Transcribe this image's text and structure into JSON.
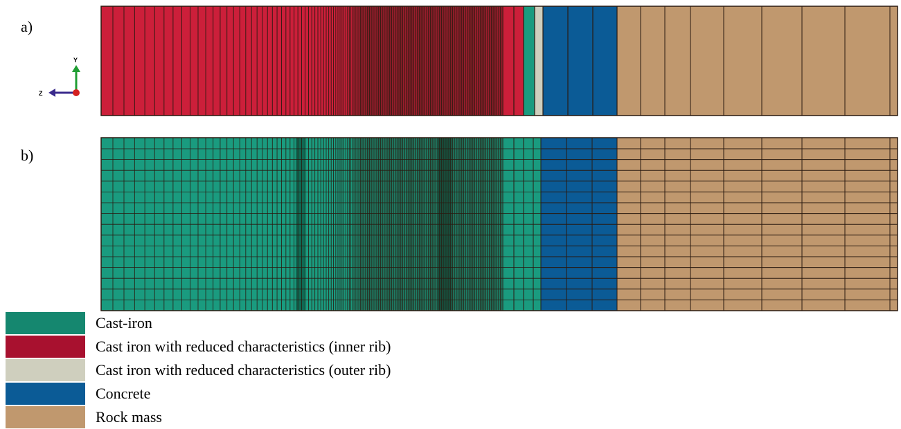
{
  "panels": {
    "a": {
      "label": "a)"
    },
    "b": {
      "label": "b)"
    }
  },
  "axis_triad": {
    "y_label": "Y",
    "z_label": "Z"
  },
  "legend": [
    {
      "label": "Cast-iron",
      "color": "#15876f"
    },
    {
      "label": "Cast iron with reduced characteristics (inner rib)",
      "color": "#a8112f"
    },
    {
      "label": "Cast iron with reduced characteristics (outer rib)",
      "color": "#cfcfbe"
    },
    {
      "label": "Concrete",
      "color": "#0b5b96"
    },
    {
      "label": "Rock mass",
      "color": "#c0986e"
    }
  ],
  "colors": {
    "inner_rib_mesh": "#cc1f3a",
    "cast_iron_mesh": "#1a9b7f",
    "cast_iron_dark": "#0c5c48",
    "mesh_line": "#2a1a10"
  }
}
